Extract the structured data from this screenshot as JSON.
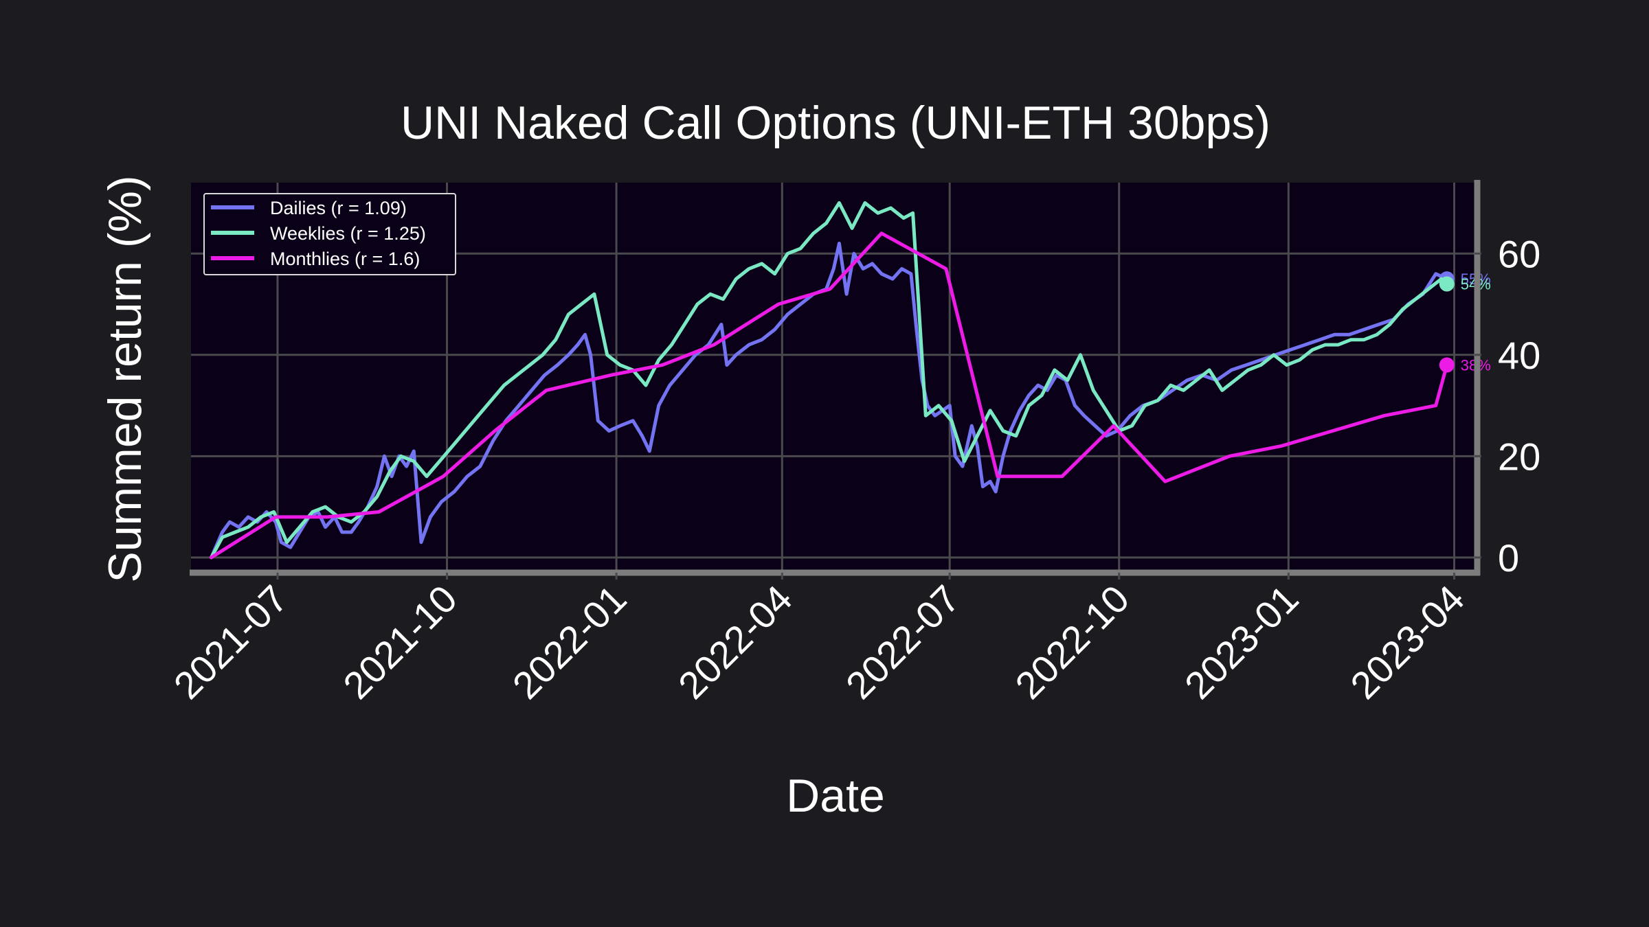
{
  "chart_data": {
    "type": "line",
    "title": "UNI Naked Call Options (UNI-ETH 30bps)",
    "xlabel": "Date",
    "ylabel": "Summed return (%)",
    "xlim": [
      "2021-05-15",
      "2023-04-12"
    ],
    "ylim": [
      -3,
      74
    ],
    "x_ticks": [
      "2021-07",
      "2021-10",
      "2022-01",
      "2022-04",
      "2022-07",
      "2022-10",
      "2023-01",
      "2023-04"
    ],
    "y_ticks": [
      0,
      20,
      40,
      60
    ],
    "grid": true,
    "legend_position": "top-left",
    "colors": {
      "background": "#1c1b1f",
      "plot_background": "#0a0017",
      "grid": "#4a4a4e",
      "spine": "#7d7d7d"
    },
    "series": [
      {
        "name": "Dailies (r = 1.09)",
        "color": "#7474f2",
        "end_label": "55%",
        "points": [
          [
            "2021-05-26",
            0
          ],
          [
            "2021-06-01",
            5
          ],
          [
            "2021-06-05",
            7
          ],
          [
            "2021-06-10",
            6
          ],
          [
            "2021-06-15",
            8
          ],
          [
            "2021-06-20",
            7
          ],
          [
            "2021-06-25",
            9
          ],
          [
            "2021-06-30",
            7
          ],
          [
            "2021-07-03",
            3
          ],
          [
            "2021-07-08",
            2
          ],
          [
            "2021-07-13",
            5
          ],
          [
            "2021-07-18",
            8
          ],
          [
            "2021-07-23",
            9
          ],
          [
            "2021-07-27",
            6
          ],
          [
            "2021-08-01",
            8
          ],
          [
            "2021-08-05",
            5
          ],
          [
            "2021-08-10",
            5
          ],
          [
            "2021-08-14",
            7
          ],
          [
            "2021-08-19",
            10
          ],
          [
            "2021-08-24",
            14
          ],
          [
            "2021-08-28",
            20
          ],
          [
            "2021-09-01",
            16
          ],
          [
            "2021-09-05",
            20
          ],
          [
            "2021-09-09",
            18
          ],
          [
            "2021-09-13",
            21
          ],
          [
            "2021-09-17",
            3
          ],
          [
            "2021-09-22",
            8
          ],
          [
            "2021-09-28",
            11
          ],
          [
            "2021-10-05",
            13
          ],
          [
            "2021-10-12",
            16
          ],
          [
            "2021-10-19",
            18
          ],
          [
            "2021-10-26",
            23
          ],
          [
            "2021-11-02",
            27
          ],
          [
            "2021-11-09",
            30
          ],
          [
            "2021-11-16",
            33
          ],
          [
            "2021-11-23",
            36
          ],
          [
            "2021-11-30",
            38
          ],
          [
            "2021-12-06",
            40
          ],
          [
            "2021-12-11",
            42
          ],
          [
            "2021-12-15",
            44
          ],
          [
            "2021-12-18",
            40
          ],
          [
            "2021-12-22",
            27
          ],
          [
            "2021-12-28",
            25
          ],
          [
            "2022-01-03",
            26
          ],
          [
            "2022-01-10",
            27
          ],
          [
            "2022-01-15",
            24
          ],
          [
            "2022-01-19",
            21
          ],
          [
            "2022-01-24",
            30
          ],
          [
            "2022-01-30",
            34
          ],
          [
            "2022-02-06",
            37
          ],
          [
            "2022-02-13",
            40
          ],
          [
            "2022-02-20",
            42
          ],
          [
            "2022-02-27",
            46
          ],
          [
            "2022-03-02",
            38
          ],
          [
            "2022-03-07",
            40
          ],
          [
            "2022-03-14",
            42
          ],
          [
            "2022-03-21",
            43
          ],
          [
            "2022-03-28",
            45
          ],
          [
            "2022-04-04",
            48
          ],
          [
            "2022-04-11",
            50
          ],
          [
            "2022-04-18",
            52
          ],
          [
            "2022-04-25",
            53
          ],
          [
            "2022-04-29",
            57
          ],
          [
            "2022-05-02",
            62
          ],
          [
            "2022-05-06",
            52
          ],
          [
            "2022-05-10",
            60
          ],
          [
            "2022-05-15",
            57
          ],
          [
            "2022-05-20",
            58
          ],
          [
            "2022-05-25",
            56
          ],
          [
            "2022-05-31",
            55
          ],
          [
            "2022-06-05",
            57
          ],
          [
            "2022-06-10",
            56
          ],
          [
            "2022-06-13",
            45
          ],
          [
            "2022-06-16",
            35
          ],
          [
            "2022-06-19",
            30
          ],
          [
            "2022-06-23",
            28
          ],
          [
            "2022-06-27",
            29
          ],
          [
            "2022-07-01",
            30
          ],
          [
            "2022-07-04",
            20
          ],
          [
            "2022-07-08",
            18
          ],
          [
            "2022-07-13",
            26
          ],
          [
            "2022-07-16",
            22
          ],
          [
            "2022-07-19",
            14
          ],
          [
            "2022-07-23",
            15
          ],
          [
            "2022-07-26",
            13
          ],
          [
            "2022-07-30",
            20
          ],
          [
            "2022-08-03",
            25
          ],
          [
            "2022-08-08",
            29
          ],
          [
            "2022-08-13",
            32
          ],
          [
            "2022-08-18",
            34
          ],
          [
            "2022-08-23",
            33
          ],
          [
            "2022-08-28",
            36
          ],
          [
            "2022-09-02",
            35
          ],
          [
            "2022-09-07",
            30
          ],
          [
            "2022-09-12",
            28
          ],
          [
            "2022-09-18",
            26
          ],
          [
            "2022-09-24",
            24
          ],
          [
            "2022-09-30",
            25
          ],
          [
            "2022-10-07",
            28
          ],
          [
            "2022-10-14",
            30
          ],
          [
            "2022-10-22",
            31
          ],
          [
            "2022-10-30",
            33
          ],
          [
            "2022-11-07",
            35
          ],
          [
            "2022-11-15",
            36
          ],
          [
            "2022-11-23",
            35
          ],
          [
            "2022-12-01",
            37
          ],
          [
            "2022-12-09",
            38
          ],
          [
            "2022-12-17",
            39
          ],
          [
            "2022-12-25",
            40
          ],
          [
            "2023-01-02",
            41
          ],
          [
            "2023-01-10",
            42
          ],
          [
            "2023-01-18",
            43
          ],
          [
            "2023-01-26",
            44
          ],
          [
            "2023-02-03",
            44
          ],
          [
            "2023-02-11",
            45
          ],
          [
            "2023-02-19",
            46
          ],
          [
            "2023-02-27",
            47
          ],
          [
            "2023-03-07",
            50
          ],
          [
            "2023-03-15",
            52
          ],
          [
            "2023-03-22",
            56
          ],
          [
            "2023-03-28",
            55
          ]
        ]
      },
      {
        "name": "Weeklies (r = 1.25)",
        "color": "#7be8c4",
        "end_label": "54%",
        "points": [
          [
            "2021-05-26",
            0
          ],
          [
            "2021-06-01",
            4
          ],
          [
            "2021-06-08",
            5
          ],
          [
            "2021-06-15",
            6
          ],
          [
            "2021-06-22",
            8
          ],
          [
            "2021-06-29",
            9
          ],
          [
            "2021-07-06",
            3
          ],
          [
            "2021-07-13",
            6
          ],
          [
            "2021-07-20",
            9
          ],
          [
            "2021-07-27",
            10
          ],
          [
            "2021-08-03",
            8
          ],
          [
            "2021-08-10",
            7
          ],
          [
            "2021-08-17",
            9
          ],
          [
            "2021-08-24",
            12
          ],
          [
            "2021-08-31",
            17
          ],
          [
            "2021-09-06",
            20
          ],
          [
            "2021-09-13",
            19
          ],
          [
            "2021-09-20",
            16
          ],
          [
            "2021-09-27",
            19
          ],
          [
            "2021-10-04",
            22
          ],
          [
            "2021-10-11",
            25
          ],
          [
            "2021-10-18",
            28
          ],
          [
            "2021-10-25",
            31
          ],
          [
            "2021-11-01",
            34
          ],
          [
            "2021-11-08",
            36
          ],
          [
            "2021-11-15",
            38
          ],
          [
            "2021-11-22",
            40
          ],
          [
            "2021-11-29",
            43
          ],
          [
            "2021-12-06",
            48
          ],
          [
            "2021-12-13",
            50
          ],
          [
            "2021-12-20",
            52
          ],
          [
            "2021-12-27",
            40
          ],
          [
            "2022-01-03",
            38
          ],
          [
            "2022-01-10",
            37
          ],
          [
            "2022-01-17",
            34
          ],
          [
            "2022-01-24",
            39
          ],
          [
            "2022-01-31",
            42
          ],
          [
            "2022-02-07",
            46
          ],
          [
            "2022-02-14",
            50
          ],
          [
            "2022-02-21",
            52
          ],
          [
            "2022-02-28",
            51
          ],
          [
            "2022-03-07",
            55
          ],
          [
            "2022-03-14",
            57
          ],
          [
            "2022-03-21",
            58
          ],
          [
            "2022-03-28",
            56
          ],
          [
            "2022-04-04",
            60
          ],
          [
            "2022-04-11",
            61
          ],
          [
            "2022-04-18",
            64
          ],
          [
            "2022-04-25",
            66
          ],
          [
            "2022-05-02",
            70
          ],
          [
            "2022-05-09",
            65
          ],
          [
            "2022-05-16",
            70
          ],
          [
            "2022-05-23",
            68
          ],
          [
            "2022-05-30",
            69
          ],
          [
            "2022-06-06",
            67
          ],
          [
            "2022-06-11",
            68
          ],
          [
            "2022-06-18",
            28
          ],
          [
            "2022-06-25",
            30
          ],
          [
            "2022-07-02",
            27
          ],
          [
            "2022-07-09",
            19
          ],
          [
            "2022-07-16",
            24
          ],
          [
            "2022-07-23",
            29
          ],
          [
            "2022-07-30",
            25
          ],
          [
            "2022-08-06",
            24
          ],
          [
            "2022-08-13",
            30
          ],
          [
            "2022-08-20",
            32
          ],
          [
            "2022-08-27",
            37
          ],
          [
            "2022-09-03",
            35
          ],
          [
            "2022-09-10",
            40
          ],
          [
            "2022-09-17",
            33
          ],
          [
            "2022-09-24",
            29
          ],
          [
            "2022-10-01",
            25
          ],
          [
            "2022-10-08",
            26
          ],
          [
            "2022-10-15",
            30
          ],
          [
            "2022-10-22",
            31
          ],
          [
            "2022-10-29",
            34
          ],
          [
            "2022-11-05",
            33
          ],
          [
            "2022-11-12",
            35
          ],
          [
            "2022-11-19",
            37
          ],
          [
            "2022-11-26",
            33
          ],
          [
            "2022-12-03",
            35
          ],
          [
            "2022-12-10",
            37
          ],
          [
            "2022-12-17",
            38
          ],
          [
            "2022-12-24",
            40
          ],
          [
            "2022-12-31",
            38
          ],
          [
            "2023-01-07",
            39
          ],
          [
            "2023-01-14",
            41
          ],
          [
            "2023-01-21",
            42
          ],
          [
            "2023-01-28",
            42
          ],
          [
            "2023-02-04",
            43
          ],
          [
            "2023-02-11",
            43
          ],
          [
            "2023-02-18",
            44
          ],
          [
            "2023-02-25",
            46
          ],
          [
            "2023-03-04",
            49
          ],
          [
            "2023-03-11",
            51
          ],
          [
            "2023-03-18",
            53
          ],
          [
            "2023-03-25",
            55
          ],
          [
            "2023-03-28",
            54
          ]
        ]
      },
      {
        "name": "Monthlies (r = 1.6)",
        "color": "#ec1ce6",
        "end_label": "38%",
        "points": [
          [
            "2021-05-26",
            0
          ],
          [
            "2021-06-30",
            8
          ],
          [
            "2021-07-28",
            8
          ],
          [
            "2021-08-25",
            9
          ],
          [
            "2021-09-29",
            16
          ],
          [
            "2021-10-27",
            25
          ],
          [
            "2021-11-24",
            33
          ],
          [
            "2021-12-29",
            36
          ],
          [
            "2022-01-26",
            38
          ],
          [
            "2022-02-23",
            42
          ],
          [
            "2022-03-30",
            50
          ],
          [
            "2022-04-27",
            53
          ],
          [
            "2022-05-25",
            64
          ],
          [
            "2022-06-29",
            57
          ],
          [
            "2022-07-27",
            16
          ],
          [
            "2022-08-31",
            16
          ],
          [
            "2022-09-28",
            26
          ],
          [
            "2022-10-26",
            15
          ],
          [
            "2022-11-30",
            20
          ],
          [
            "2022-12-28",
            22
          ],
          [
            "2023-01-25",
            25
          ],
          [
            "2023-02-22",
            28
          ],
          [
            "2023-03-22",
            30
          ],
          [
            "2023-03-28",
            38
          ]
        ]
      }
    ]
  }
}
